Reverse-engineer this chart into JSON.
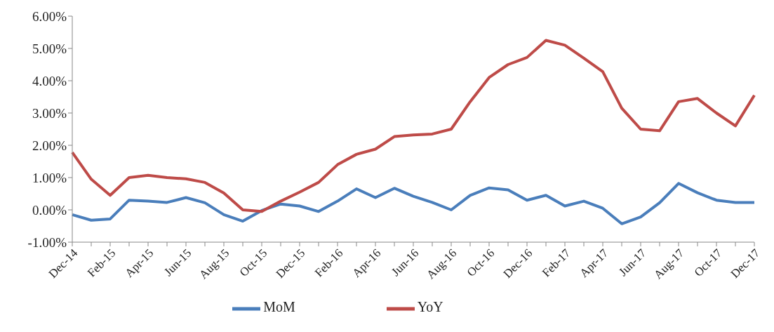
{
  "chart_data": {
    "type": "line",
    "categories": [
      "Dec-14",
      null,
      "Feb-15",
      null,
      "Apr-15",
      null,
      "Jun-15",
      null,
      "Aug-15",
      null,
      "Oct-15",
      null,
      "Dec-15",
      null,
      "Feb-16",
      null,
      "Apr-16",
      null,
      "Jun-16",
      null,
      "Aug-16",
      null,
      "Oct-16",
      null,
      "Dec-16",
      null,
      "Feb-17",
      null,
      "Apr-17",
      null,
      "Jun-17",
      null,
      "Aug-17",
      null,
      "Oct-17",
      null,
      "Dec-17"
    ],
    "series": [
      {
        "name": "MoM",
        "color": "#4a7ebb",
        "values": [
          -0.15,
          -0.32,
          -0.28,
          0.3,
          0.27,
          0.23,
          0.38,
          0.22,
          -0.15,
          -0.35,
          -0.02,
          0.18,
          0.12,
          -0.05,
          0.27,
          0.65,
          0.38,
          0.67,
          0.42,
          0.23,
          0.0,
          0.45,
          0.68,
          0.62,
          0.3,
          0.45,
          0.12,
          0.27,
          0.05,
          -0.43,
          -0.22,
          0.22,
          0.82,
          0.53,
          0.3,
          0.23,
          0.23
        ]
      },
      {
        "name": "YoY",
        "color": "#be4b48",
        "values": [
          1.78,
          0.95,
          0.45,
          1.0,
          1.07,
          1.0,
          0.96,
          0.85,
          0.52,
          0.0,
          -0.05,
          0.27,
          0.55,
          0.85,
          1.4,
          1.72,
          1.88,
          2.27,
          2.32,
          2.35,
          2.5,
          3.35,
          4.1,
          4.5,
          4.72,
          5.25,
          5.1,
          4.7,
          4.28,
          3.15,
          2.5,
          2.45,
          3.35,
          3.45,
          3.0,
          2.6,
          3.55
        ]
      }
    ],
    "ylim": [
      -1,
      6
    ],
    "yticks": [
      {
        "value": -1,
        "label": "-1.00%"
      },
      {
        "value": 0,
        "label": "0.00%"
      },
      {
        "value": 1,
        "label": "1.00%"
      },
      {
        "value": 2,
        "label": "2.00%"
      },
      {
        "value": 3,
        "label": "3.00%"
      },
      {
        "value": 4,
        "label": "4.00%"
      },
      {
        "value": 5,
        "label": "5.00%"
      },
      {
        "value": 6,
        "label": "6.00%"
      }
    ],
    "grid": false,
    "legend": "bottom",
    "marker": "none",
    "line_style": "solid"
  }
}
